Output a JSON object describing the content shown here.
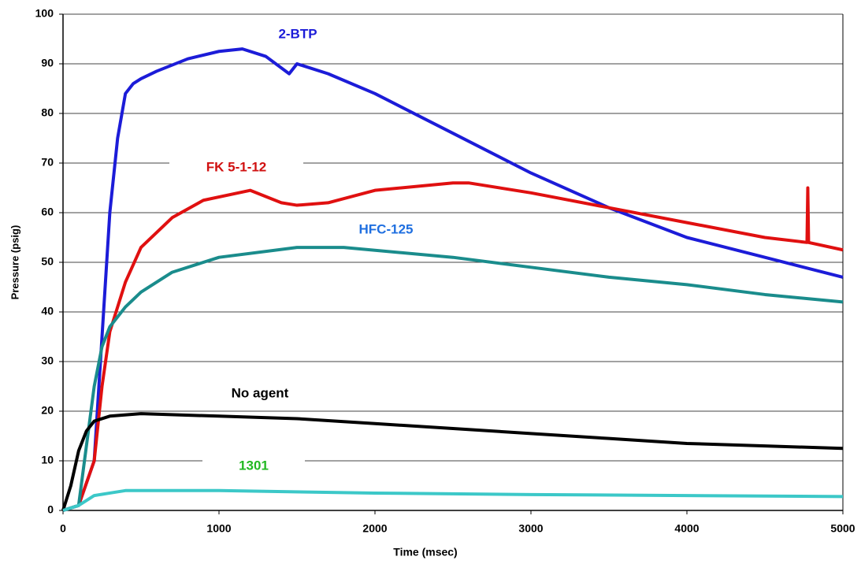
{
  "chart_data": {
    "type": "line",
    "x_label": "Time (msec)",
    "y_label": "Pressure (psig)",
    "xlim": [
      0,
      5000
    ],
    "xticks": [
      0,
      1000,
      2000,
      3000,
      4000,
      5000
    ],
    "ylim": [
      0,
      100
    ],
    "yticks": [
      0,
      10,
      20,
      30,
      40,
      50,
      60,
      70,
      80,
      90,
      100
    ],
    "grid": true,
    "series": [
      {
        "name": "2-BTP",
        "color": "#1c1cd8",
        "label_color": "#1c1cd8",
        "x": [
          0,
          100,
          200,
          250,
          300,
          350,
          400,
          450,
          500,
          600,
          800,
          1000,
          1150,
          1300,
          1450,
          1500,
          1700,
          2000,
          2500,
          3000,
          3500,
          4000,
          4500,
          5000
        ],
        "values": [
          0,
          1,
          10,
          35,
          60,
          75,
          84,
          86,
          87,
          88.5,
          91,
          92.5,
          93,
          91.5,
          88,
          90,
          88,
          84,
          76,
          68,
          61,
          55,
          51,
          47
        ]
      },
      {
        "name": "FK 5-1-12",
        "color": "#e01010",
        "label_color": "#d01010",
        "x": [
          0,
          100,
          200,
          250,
          300,
          400,
          500,
          700,
          900,
          1200,
          1400,
          1500,
          1700,
          2000,
          2500,
          2600,
          3000,
          3500,
          4000,
          4500,
          4770,
          4775,
          4780,
          5000
        ],
        "values": [
          0,
          1,
          10,
          25,
          36,
          46,
          53,
          59,
          62.5,
          64.5,
          62,
          61.5,
          62,
          64.5,
          66,
          66,
          64,
          61,
          58,
          55,
          54,
          65,
          54,
          52.5
        ]
      },
      {
        "name": "HFC-125",
        "color": "#1a8c8c",
        "label_color": "#1f6fe0",
        "x": [
          0,
          100,
          200,
          250,
          300,
          400,
          500,
          700,
          1000,
          1500,
          1800,
          2500,
          3000,
          3500,
          4000,
          4500,
          5000
        ],
        "values": [
          0,
          1,
          25,
          33,
          37,
          41,
          44,
          48,
          51,
          53,
          53,
          51,
          49,
          47,
          45.5,
          43.5,
          42
        ]
      },
      {
        "name": "No agent",
        "color": "#000000",
        "label_color": "#000000",
        "x": [
          0,
          50,
          100,
          150,
          200,
          300,
          500,
          1000,
          1500,
          2000,
          2500,
          3000,
          3500,
          4000,
          4500,
          5000
        ],
        "values": [
          0,
          5,
          12,
          16,
          18,
          19,
          19.5,
          19,
          18.5,
          17.5,
          16.5,
          15.5,
          14.5,
          13.5,
          13,
          12.5
        ]
      },
      {
        "name": "1301",
        "color": "#3cc8c8",
        "label_color": "#22b822",
        "x": [
          0,
          100,
          200,
          300,
          400,
          600,
          1000,
          2000,
          3000,
          4000,
          5000
        ],
        "values": [
          0,
          1,
          3,
          3.5,
          4,
          4,
          4,
          3.5,
          3.2,
          3,
          2.8
        ]
      }
    ]
  }
}
